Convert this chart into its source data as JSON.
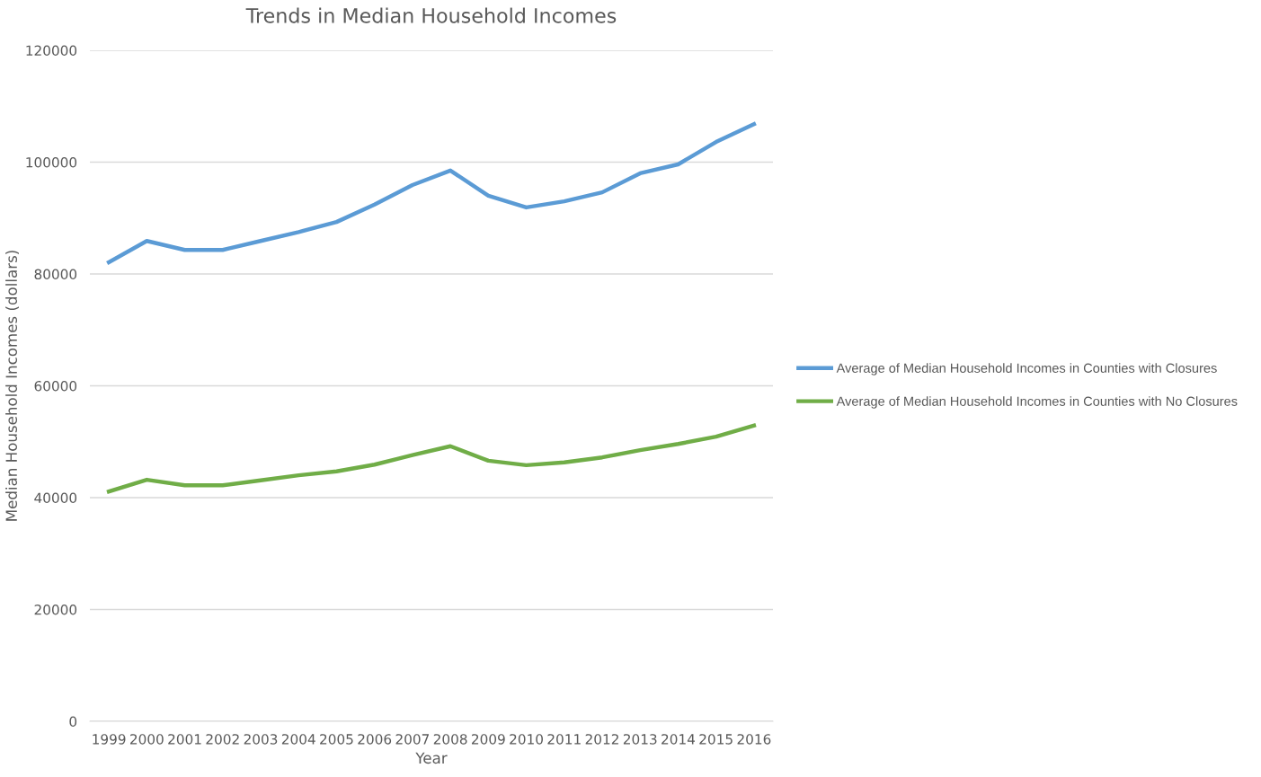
{
  "chart_data": {
    "type": "line",
    "title": "Trends in Median Household Incomes",
    "xlabel": "Year",
    "ylabel": "Median Household Incomes (dollars)",
    "categories": [
      "1999",
      "2000",
      "2001",
      "2002",
      "2003",
      "2004",
      "2005",
      "2006",
      "2007",
      "2008",
      "2009",
      "2010",
      "2011",
      "2012",
      "2013",
      "2014",
      "2015",
      "2016"
    ],
    "series": [
      {
        "name": "Average of Median Household Incomes in Counties with Closures",
        "color": "#5b9bd5",
        "values": [
          82100,
          85900,
          84300,
          84300,
          85900,
          87500,
          89300,
          92400,
          95900,
          98500,
          94000,
          91900,
          93000,
          94600,
          98000,
          99600,
          103600,
          106800
        ]
      },
      {
        "name": "Average of Median Household Incomes in Counties with No Closures",
        "color": "#70ad47",
        "values": [
          41100,
          43200,
          42200,
          42200,
          43100,
          44000,
          44700,
          45900,
          47600,
          49200,
          46600,
          45800,
          46300,
          47200,
          48500,
          49600,
          50900,
          52900
        ]
      }
    ],
    "ylim": [
      0,
      120000
    ],
    "yticks": [
      0,
      20000,
      40000,
      60000,
      80000,
      100000,
      120000
    ],
    "grid": "y",
    "legend": "right",
    "marker": "none",
    "line_style": "solid"
  }
}
